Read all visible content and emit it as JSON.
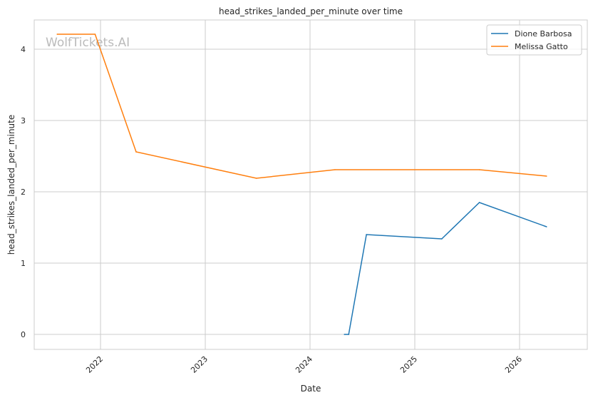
{
  "chart_data": {
    "type": "line",
    "title": "head_strikes_landed_per_minute over time",
    "xlabel": "Date",
    "ylabel": "head_strikes_landed_per_minute",
    "x_ticks": [
      "2022",
      "2023",
      "2024",
      "2025",
      "2026"
    ],
    "y_ticks": [
      "0",
      "1",
      "2",
      "3",
      "4"
    ],
    "xlim": [
      "2021-05-15",
      "2026-08-25"
    ],
    "ylim": [
      -0.21,
      4.41
    ],
    "grid": true,
    "legend_placement": "top-right",
    "watermark": "WolfTickets.AI",
    "series": [
      {
        "name": "Dione Barbosa",
        "color": "#1f77b4",
        "x": [
          "2024-04-30",
          "2024-05-15",
          "2024-07-16",
          "2025-04-05",
          "2025-08-14",
          "2026-04-05"
        ],
        "y": [
          0,
          0,
          1.4,
          1.34,
          1.85,
          1.51
        ]
      },
      {
        "name": "Melissa Gatto",
        "color": "#ff7f0e",
        "x": [
          "2021-08-03",
          "2021-12-13",
          "2022-05-05",
          "2023-06-28",
          "2024-03-28",
          "2025-08-14",
          "2026-04-05"
        ],
        "y": [
          4.21,
          4.21,
          2.56,
          2.19,
          2.31,
          2.31,
          2.22
        ]
      }
    ]
  }
}
